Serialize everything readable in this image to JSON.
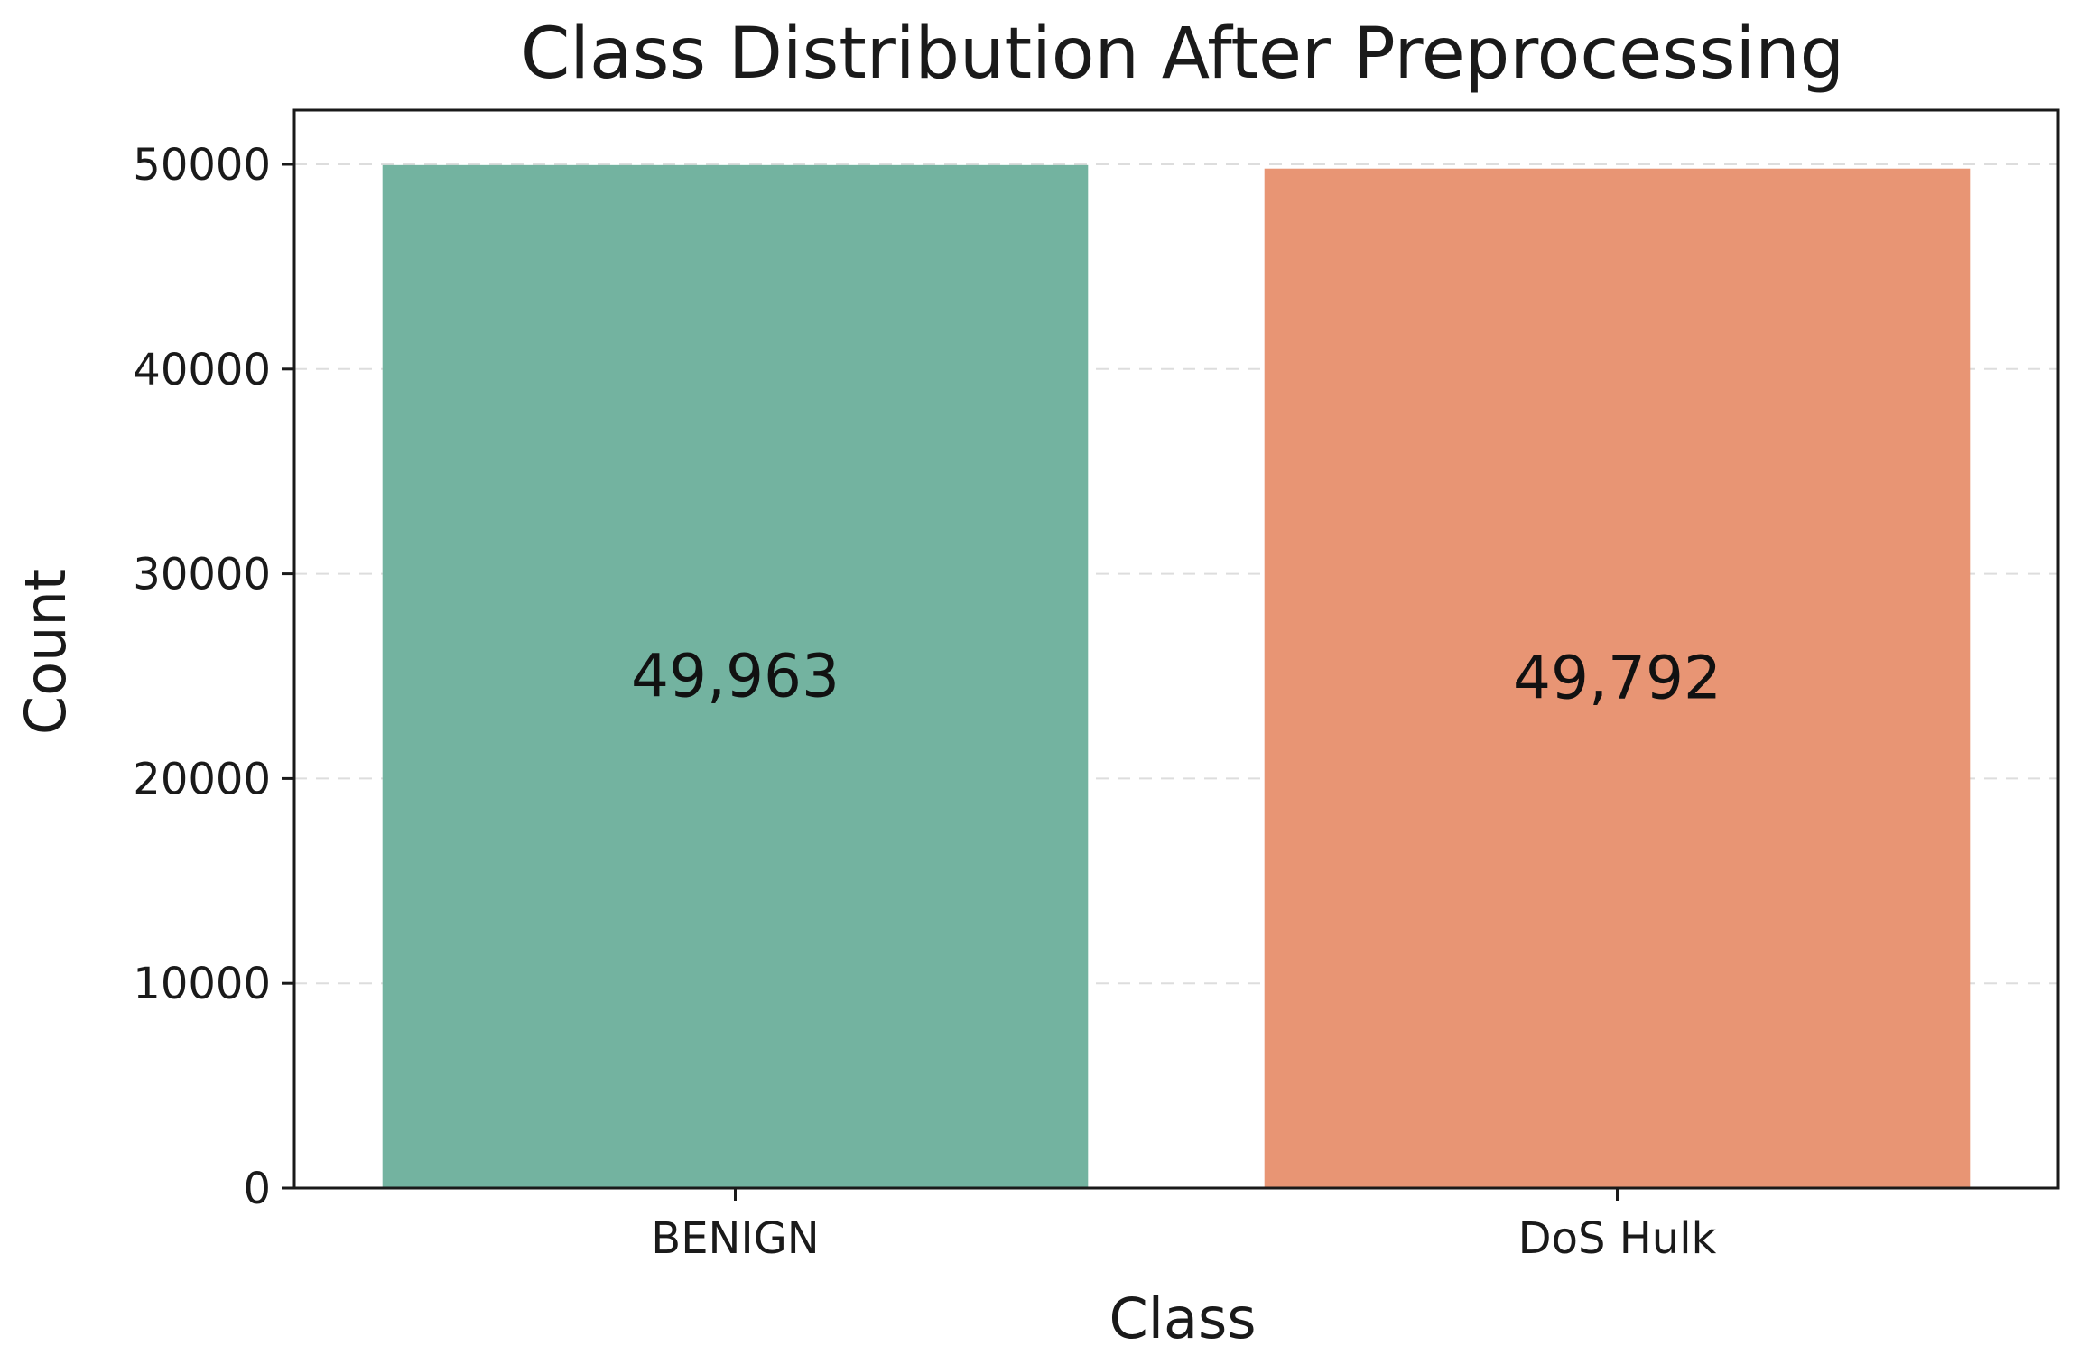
{
  "chart_data": {
    "type": "bar",
    "title": "Class Distribution After Preprocessing",
    "xlabel": "Class",
    "ylabel": "Count",
    "categories": [
      "BENIGN",
      "DoS Hulk"
    ],
    "values": [
      49963,
      49792
    ],
    "value_labels": [
      "49,963",
      "49,792"
    ],
    "colors": [
      "#73b3a0",
      "#e89574"
    ],
    "ylim": [
      0,
      50000
    ],
    "yticks": [
      0,
      10000,
      20000,
      30000,
      40000,
      50000
    ],
    "ytick_labels": [
      "0",
      "10000",
      "20000",
      "30000",
      "40000",
      "50000"
    ],
    "grid": "y-dashed",
    "legend": "none"
  }
}
